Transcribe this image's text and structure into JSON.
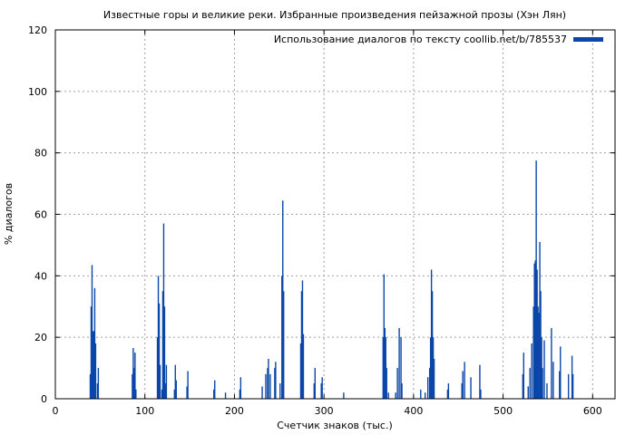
{
  "chart_data": {
    "type": "bar",
    "title": "Известные горы и великие реки. Избранные произведения пейзажной прозы (Хэн Лян)",
    "xlabel": "Счетчик знаков (тыс.)",
    "ylabel": "% диалогов",
    "xlim": [
      0,
      625
    ],
    "ylim": [
      0,
      120
    ],
    "xticks": [
      0,
      100,
      200,
      300,
      400,
      500,
      600
    ],
    "yticks": [
      0,
      20,
      40,
      60,
      80,
      100,
      120
    ],
    "grid": true,
    "legend_position": "top-right",
    "colors": {
      "bars": "#0b47a9",
      "grid": "#a0a0a0",
      "axis": "#000000"
    },
    "series": [
      {
        "name": "Использование диалогов по тексту coollib.net/b/785537",
        "points": [
          [
            39,
            8
          ],
          [
            40,
            30
          ],
          [
            41,
            43.5
          ],
          [
            42,
            22
          ],
          [
            43,
            22
          ],
          [
            44,
            36
          ],
          [
            45,
            18
          ],
          [
            47,
            5
          ],
          [
            48,
            10
          ],
          [
            86,
            8
          ],
          [
            87,
            16.5
          ],
          [
            88,
            10
          ],
          [
            89,
            15
          ],
          [
            90,
            3
          ],
          [
            114,
            20
          ],
          [
            115,
            40
          ],
          [
            116,
            31
          ],
          [
            117,
            11
          ],
          [
            119,
            3
          ],
          [
            120,
            35
          ],
          [
            121,
            57
          ],
          [
            122,
            30
          ],
          [
            123,
            5
          ],
          [
            124,
            11
          ],
          [
            133,
            3
          ],
          [
            134,
            11
          ],
          [
            135,
            6
          ],
          [
            147,
            4
          ],
          [
            148,
            9
          ],
          [
            177,
            3
          ],
          [
            178,
            6
          ],
          [
            190,
            2
          ],
          [
            206,
            3
          ],
          [
            207,
            7
          ],
          [
            231,
            4
          ],
          [
            235,
            8
          ],
          [
            237,
            10
          ],
          [
            238,
            13
          ],
          [
            240,
            8
          ],
          [
            245,
            10
          ],
          [
            246,
            12
          ],
          [
            251,
            5
          ],
          [
            253,
            40
          ],
          [
            254,
            64.5
          ],
          [
            255,
            35
          ],
          [
            274,
            18
          ],
          [
            275,
            35
          ],
          [
            276,
            38.5
          ],
          [
            277,
            21
          ],
          [
            289,
            5
          ],
          [
            290,
            10
          ],
          [
            297,
            5
          ],
          [
            298,
            7
          ],
          [
            322,
            2
          ],
          [
            366,
            20
          ],
          [
            367,
            40.5
          ],
          [
            368,
            23
          ],
          [
            369,
            20
          ],
          [
            370,
            10
          ],
          [
            372,
            2
          ],
          [
            380,
            2
          ],
          [
            382,
            10
          ],
          [
            384,
            23
          ],
          [
            386,
            20
          ],
          [
            387,
            5
          ],
          [
            408,
            3
          ],
          [
            413,
            2
          ],
          [
            416,
            7
          ],
          [
            418,
            10
          ],
          [
            419,
            20
          ],
          [
            420,
            42
          ],
          [
            421,
            35
          ],
          [
            422,
            20
          ],
          [
            423,
            13
          ],
          [
            438,
            3
          ],
          [
            439,
            5
          ],
          [
            454,
            5
          ],
          [
            455,
            9
          ],
          [
            457,
            12
          ],
          [
            464,
            7
          ],
          [
            474,
            11
          ],
          [
            475,
            3
          ],
          [
            522,
            8
          ],
          [
            523,
            15
          ],
          [
            528,
            4
          ],
          [
            530,
            10
          ],
          [
            532,
            18
          ],
          [
            534,
            30
          ],
          [
            535,
            44
          ],
          [
            536,
            45
          ],
          [
            537,
            77.5
          ],
          [
            538,
            42
          ],
          [
            539,
            30
          ],
          [
            540,
            28
          ],
          [
            541,
            51
          ],
          [
            542,
            35
          ],
          [
            543,
            20
          ],
          [
            544,
            10
          ],
          [
            546,
            19
          ],
          [
            549,
            5
          ],
          [
            554,
            23
          ],
          [
            556,
            12
          ],
          [
            563,
            9
          ],
          [
            564,
            17
          ],
          [
            573,
            8
          ],
          [
            577,
            14
          ],
          [
            578,
            8
          ]
        ]
      }
    ]
  }
}
